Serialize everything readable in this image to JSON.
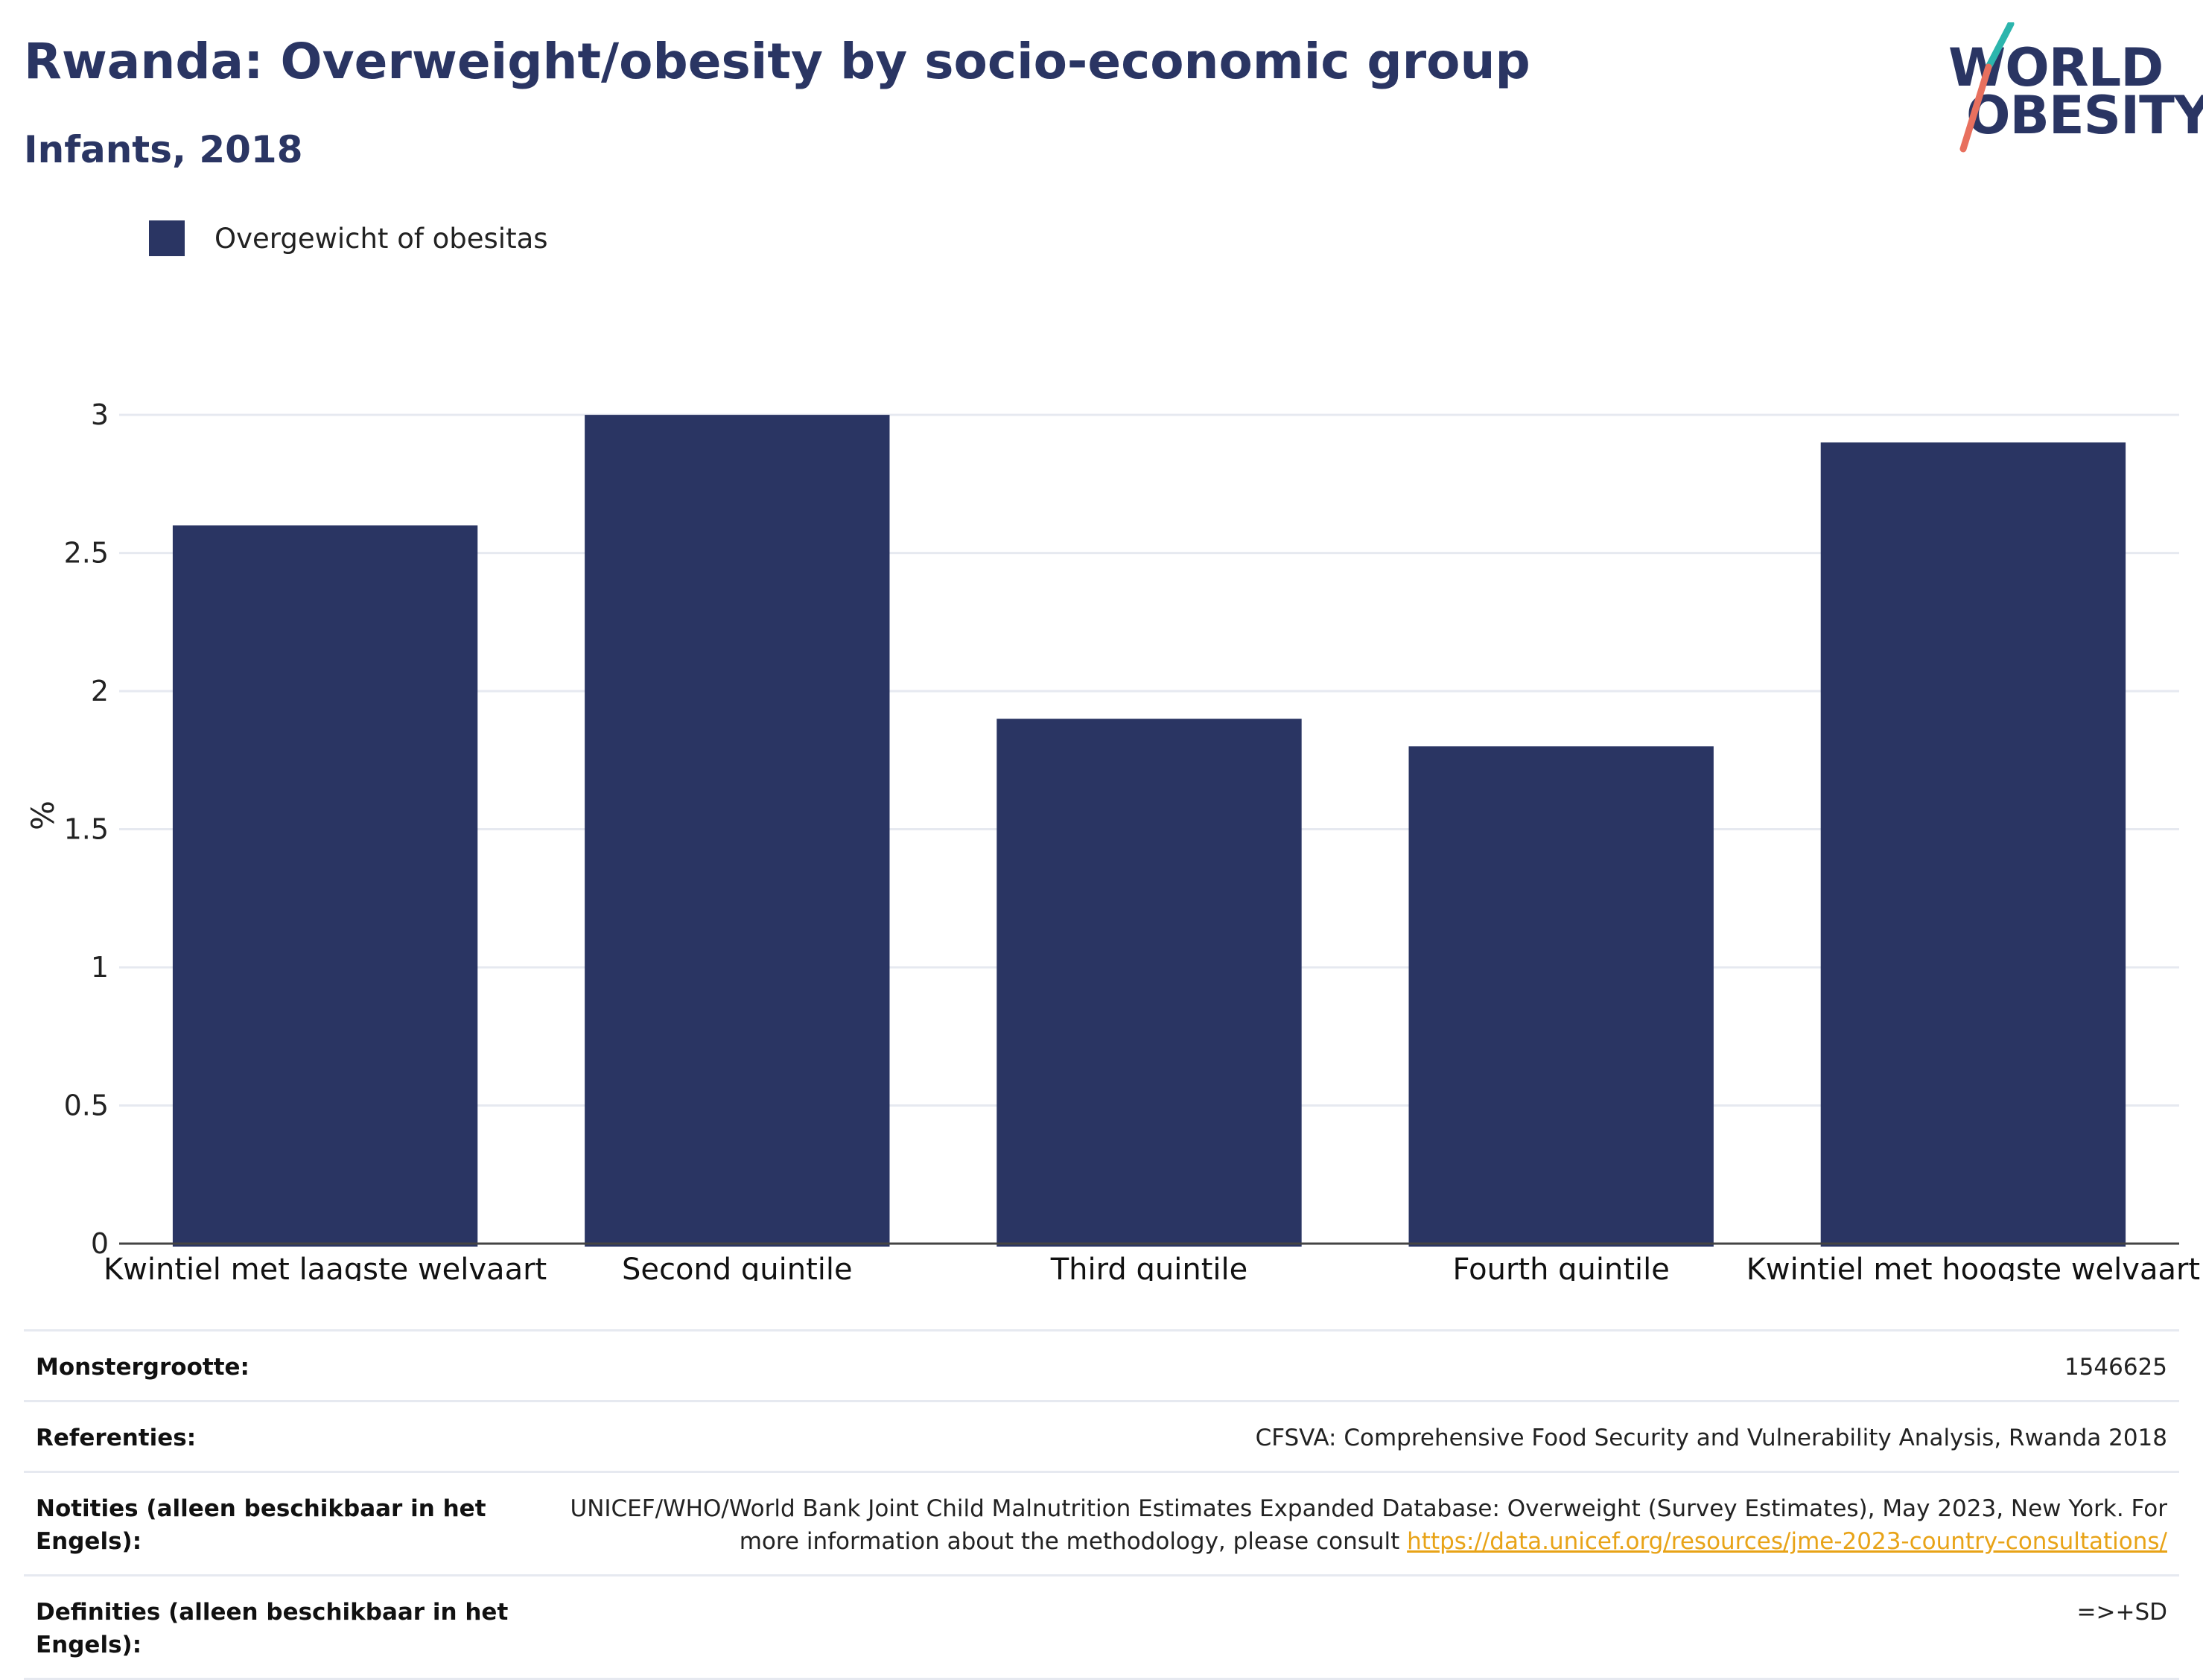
{
  "header": {
    "title": "Rwanda: Overweight/obesity by socio-economic group",
    "subtitle": "Infants, 2018"
  },
  "logo": {
    "line1": "WORLD",
    "line2": "OBESITY",
    "colors": {
      "text": "#2a3563",
      "slash_top": "#2cb5ad",
      "slash_bottom": "#e8705e"
    }
  },
  "legend": {
    "label": "Overgewicht of obesitas",
    "color": "#2a3563"
  },
  "chart_data": {
    "type": "bar",
    "categories": [
      "Kwintiel met laagste welvaart",
      "Second quintile",
      "Third quintile",
      "Fourth quintile",
      "Kwintiel met hoogste welvaart"
    ],
    "series": [
      {
        "name": "Overgewicht of obesitas",
        "values": [
          2.6,
          3.0,
          1.9,
          1.8,
          2.9
        ]
      }
    ],
    "ylabel": "%",
    "ylim": [
      0,
      3.1
    ],
    "yticks": [
      0,
      0.5,
      1,
      1.5,
      2,
      2.5,
      3
    ],
    "ytick_labels": [
      "0",
      "0.5",
      "1",
      "1.5",
      "2",
      "2.5",
      "3"
    ],
    "grid": true,
    "legend_position": "top-left",
    "bar_color": "#2a3563"
  },
  "info": {
    "rows": [
      {
        "key": "Monstergrootte:",
        "value": "1546625"
      },
      {
        "key": "Referenties:",
        "value": "CFSVA: Comprehensive Food Security and Vulnerability Analysis, Rwanda 2018"
      },
      {
        "key": "Notities (alleen beschikbaar in het Engels):",
        "value": "UNICEF/WHO/World Bank Joint Child Malnutrition Estimates Expanded Database: Overweight (Survey Estimates), May 2023, New York. For more information about the methodology, please consult",
        "link": "https://data.unicef.org/resources/jme-2023-country-consultations/"
      },
      {
        "key": "Definities (alleen beschikbaar in het Engels):",
        "value": "=>+SD"
      }
    ]
  }
}
